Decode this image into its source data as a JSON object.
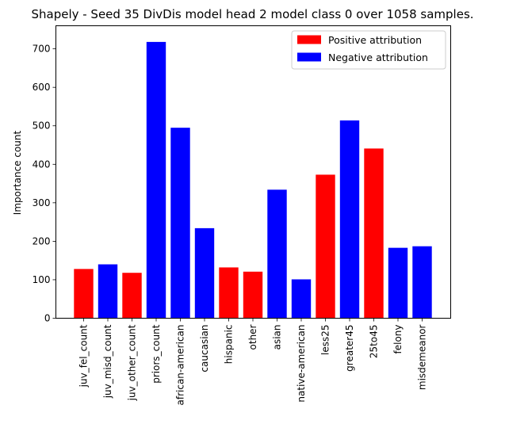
{
  "chart_data": {
    "type": "bar",
    "title": "Shapely - Seed 35 DivDis model head 2 model class 0 over 1058 samples.",
    "xlabel": "",
    "ylabel": "Importance count",
    "ylim": [
      0,
      760
    ],
    "yticks": [
      0,
      100,
      200,
      300,
      400,
      500,
      600,
      700
    ],
    "categories": [
      "juv_fel_count",
      "juv_misd_count",
      "juv_other_count",
      "priors_count",
      "african-american",
      "caucasian",
      "hispanic",
      "other",
      "asian",
      "native-american",
      "less25",
      "greater45",
      "25to45",
      "felony",
      "misdemeanor"
    ],
    "values": [
      128,
      140,
      118,
      718,
      495,
      234,
      132,
      121,
      334,
      101,
      373,
      514,
      441,
      183,
      187
    ],
    "attribution": [
      "positive",
      "negative",
      "positive",
      "negative",
      "negative",
      "negative",
      "positive",
      "positive",
      "negative",
      "negative",
      "positive",
      "negative",
      "positive",
      "negative",
      "negative"
    ],
    "legend": {
      "placement": "top-right",
      "entries": [
        {
          "key": "positive",
          "label": "Positive attribution",
          "color": "#ff0000"
        },
        {
          "key": "negative",
          "label": "Negative attribution",
          "color": "#0000ff"
        }
      ]
    },
    "grid": false
  }
}
